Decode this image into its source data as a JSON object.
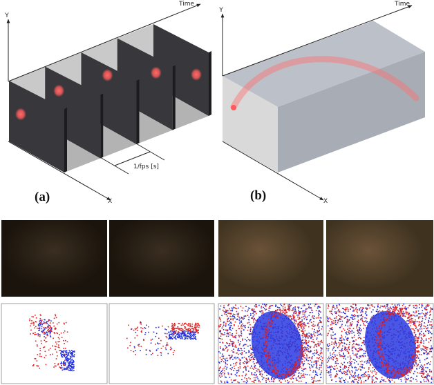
{
  "panel_a": {
    "time_label": "Time",
    "y_label": "Y",
    "x_label": "X",
    "interval_label": "1/fps [s]",
    "caption": "(a)"
  },
  "panel_b": {
    "time_label": "Time",
    "y_label": "Y",
    "x_label": "X",
    "caption": "(b)"
  }
}
